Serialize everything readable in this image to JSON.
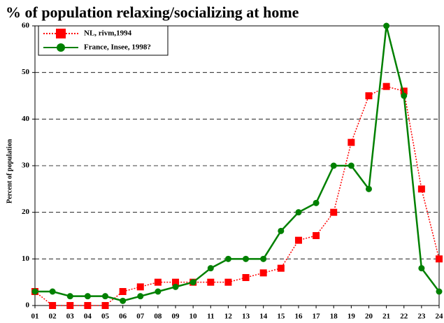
{
  "chart_data": {
    "type": "line",
    "title": "% of population relaxing/socializing at home",
    "y_label": "Percent of population",
    "categories": [
      "01",
      "02",
      "03",
      "04",
      "05",
      "06",
      "07",
      "08",
      "09",
      "10",
      "11",
      "12",
      "13",
      "14",
      "15",
      "16",
      "17",
      "18",
      "19",
      "20",
      "21",
      "22",
      "23",
      "24"
    ],
    "series": [
      {
        "name": "NL, rivm,1994",
        "color": "#ff0000",
        "marker": "square",
        "dash": "dotted",
        "values": [
          3,
          0,
          0,
          0,
          0,
          3,
          4,
          5,
          5,
          5,
          5,
          5,
          6,
          7,
          8,
          14,
          15,
          20,
          35,
          45,
          47,
          46,
          25,
          10
        ]
      },
      {
        "name": "France, Insee, 1998?",
        "color": "#008000",
        "marker": "circle",
        "dash": "solid",
        "values": [
          3,
          3,
          2,
          2,
          2,
          1,
          2,
          3,
          4,
          5,
          8,
          10,
          10,
          10,
          16,
          20,
          22,
          30,
          30,
          25,
          60,
          45,
          8,
          3
        ]
      }
    ],
    "ylim": [
      0,
      60
    ],
    "yticks": [
      0,
      10,
      20,
      30,
      40,
      50,
      60
    ],
    "grid": true,
    "legend": "upper left"
  }
}
